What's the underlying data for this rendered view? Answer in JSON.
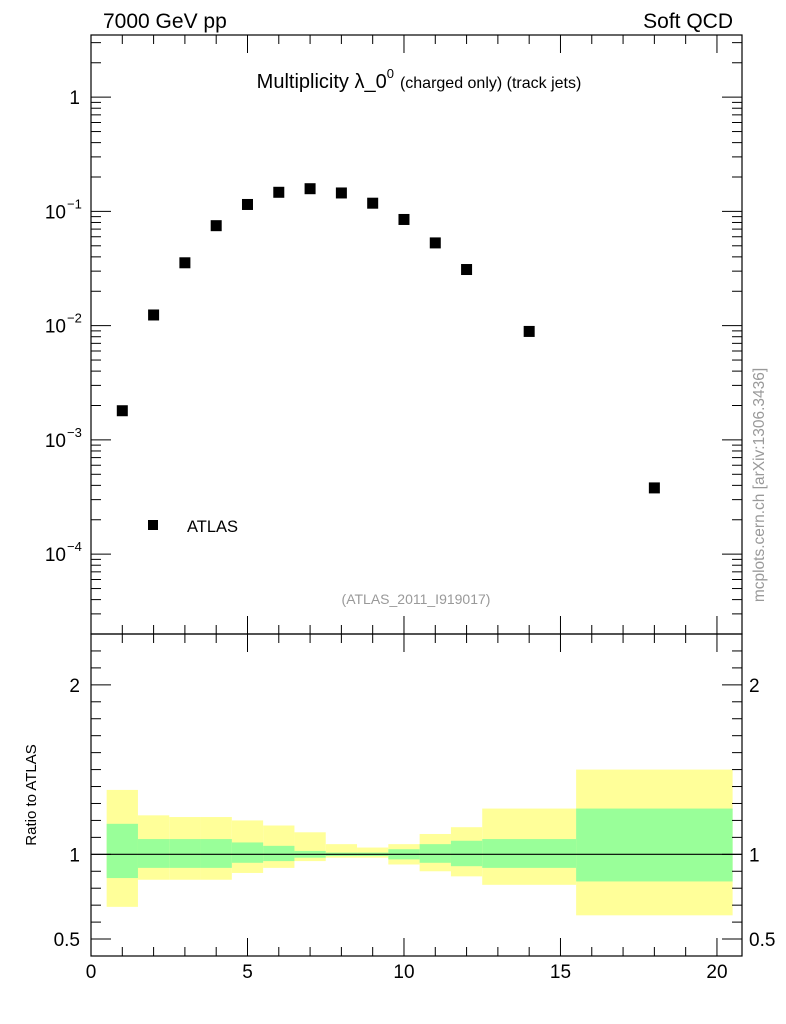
{
  "header": {
    "left": "7000 GeV pp",
    "right": "Soft QCD"
  },
  "side_label": "mcplots.cern.ch [arXiv:1306.3436]",
  "colors": {
    "band_outer": "#ffff99",
    "band_inner": "#99ff99",
    "marker": "#000000",
    "ref_line": "#000000",
    "analysis_text": "#999999"
  },
  "chart_data": [
    {
      "type": "scatter",
      "panel": "main",
      "title_main": "Multiplicity λ_0",
      "title_sup": "0",
      "title_suffix": "(charged only) (track jets)",
      "analysis_label": "(ATLAS_2011_I919017)",
      "yscale": "log",
      "ylim": [
        2e-05,
        3.5
      ],
      "xlim": [
        0,
        20.8
      ],
      "y_tick_labels": [
        {
          "value": 0.0001,
          "base": "10",
          "exp": "−4"
        },
        {
          "value": 0.001,
          "base": "10",
          "exp": "−3"
        },
        {
          "value": 0.01,
          "base": "10",
          "exp": "−2"
        },
        {
          "value": 0.1,
          "base": "10",
          "exp": "−1"
        },
        {
          "value": 1,
          "base": "1",
          "exp": ""
        }
      ],
      "legend": {
        "placement": "bottom-left",
        "entries": [
          "ATLAS"
        ]
      },
      "series": [
        {
          "name": "ATLAS",
          "marker": "square",
          "x": [
            1,
            2,
            3,
            4,
            5,
            6,
            7,
            8,
            9,
            10,
            11,
            12,
            14,
            18
          ],
          "y": [
            0.0018,
            0.0124,
            0.0355,
            0.075,
            0.115,
            0.147,
            0.158,
            0.145,
            0.118,
            0.085,
            0.053,
            0.031,
            0.0089,
            0.00038
          ]
        }
      ]
    },
    {
      "type": "area",
      "panel": "ratio",
      "ylabel": "Ratio to ATLAS",
      "ylim": [
        0.4,
        2.3
      ],
      "xlim": [
        0,
        20.8
      ],
      "y_ticks": [
        0.5,
        1,
        2
      ],
      "y_tick_labels": [
        "0.5",
        "1",
        "2"
      ],
      "x_ticks": [
        0,
        5,
        10,
        15,
        20
      ],
      "x_tick_labels": [
        "0",
        "5",
        "10",
        "15",
        "20"
      ],
      "reference": 1,
      "bins": [
        {
          "lo": 0.5,
          "hi": 1.5,
          "inner": [
            0.86,
            1.18
          ],
          "outer": [
            0.69,
            1.38
          ]
        },
        {
          "lo": 1.5,
          "hi": 2.5,
          "inner": [
            0.92,
            1.09
          ],
          "outer": [
            0.85,
            1.23
          ]
        },
        {
          "lo": 2.5,
          "hi": 3.5,
          "inner": [
            0.92,
            1.09
          ],
          "outer": [
            0.85,
            1.22
          ]
        },
        {
          "lo": 3.5,
          "hi": 4.5,
          "inner": [
            0.92,
            1.09
          ],
          "outer": [
            0.85,
            1.22
          ]
        },
        {
          "lo": 4.5,
          "hi": 5.5,
          "inner": [
            0.95,
            1.07
          ],
          "outer": [
            0.89,
            1.2
          ]
        },
        {
          "lo": 5.5,
          "hi": 6.5,
          "inner": [
            0.96,
            1.05
          ],
          "outer": [
            0.92,
            1.17
          ]
        },
        {
          "lo": 6.5,
          "hi": 7.5,
          "inner": [
            0.98,
            1.02
          ],
          "outer": [
            0.96,
            1.13
          ]
        },
        {
          "lo": 7.5,
          "hi": 8.5,
          "inner": [
            0.99,
            1.01
          ],
          "outer": [
            0.98,
            1.06
          ]
        },
        {
          "lo": 8.5,
          "hi": 9.5,
          "inner": [
            0.99,
            1.01
          ],
          "outer": [
            0.98,
            1.04
          ]
        },
        {
          "lo": 9.5,
          "hi": 10.5,
          "inner": [
            0.97,
            1.03
          ],
          "outer": [
            0.94,
            1.06
          ]
        },
        {
          "lo": 10.5,
          "hi": 11.5,
          "inner": [
            0.95,
            1.06
          ],
          "outer": [
            0.9,
            1.12
          ]
        },
        {
          "lo": 11.5,
          "hi": 12.5,
          "inner": [
            0.93,
            1.08
          ],
          "outer": [
            0.87,
            1.16
          ]
        },
        {
          "lo": 12.5,
          "hi": 15.5,
          "inner": [
            0.92,
            1.09
          ],
          "outer": [
            0.82,
            1.27
          ]
        },
        {
          "lo": 15.5,
          "hi": 20.5,
          "inner": [
            0.84,
            1.27
          ],
          "outer": [
            0.64,
            1.5
          ]
        }
      ]
    }
  ]
}
